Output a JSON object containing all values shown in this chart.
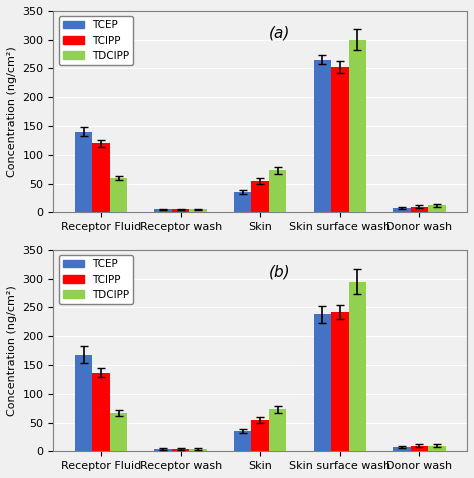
{
  "panel_a": {
    "label": "(a)",
    "categories": [
      "Receptor Fluid",
      "Receptor wash",
      "Skin",
      "Skin surface wash",
      "Donor wash"
    ],
    "TCEP": [
      140,
      5,
      35,
      265,
      8
    ],
    "TCIPP": [
      120,
      5,
      55,
      253,
      10
    ],
    "TDCIPP": [
      60,
      5,
      73,
      300,
      12
    ],
    "TCEP_err": [
      8,
      1,
      4,
      8,
      2
    ],
    "TCIPP_err": [
      6,
      1,
      5,
      10,
      2
    ],
    "TDCIPP_err": [
      4,
      1,
      6,
      18,
      2
    ]
  },
  "panel_b": {
    "label": "(b)",
    "categories": [
      "Receptor Fluid",
      "Receptor wash",
      "Skin",
      "Skin surface wash",
      "Donor wash"
    ],
    "TCEP": [
      168,
      4,
      35,
      238,
      8
    ],
    "TCIPP": [
      137,
      4,
      55,
      242,
      10
    ],
    "TDCIPP": [
      67,
      4,
      73,
      295,
      10
    ],
    "TCEP_err": [
      15,
      1,
      4,
      15,
      2
    ],
    "TCIPP_err": [
      8,
      1,
      5,
      12,
      2
    ],
    "TDCIPP_err": [
      5,
      1,
      6,
      22,
      2
    ]
  },
  "colors": {
    "TCEP": "#4472C4",
    "TCIPP": "#FF0000",
    "TDCIPP": "#92D050"
  },
  "ylim": [
    0,
    350
  ],
  "yticks": [
    0,
    50,
    100,
    150,
    200,
    250,
    300,
    350
  ],
  "ylabel": "Concentration (ng/cm²)",
  "legend_labels": [
    "TCEP",
    "TCIPP",
    "TDCIPP"
  ],
  "bar_width": 0.22,
  "figsize": [
    4.74,
    4.78
  ],
  "dpi": 100
}
